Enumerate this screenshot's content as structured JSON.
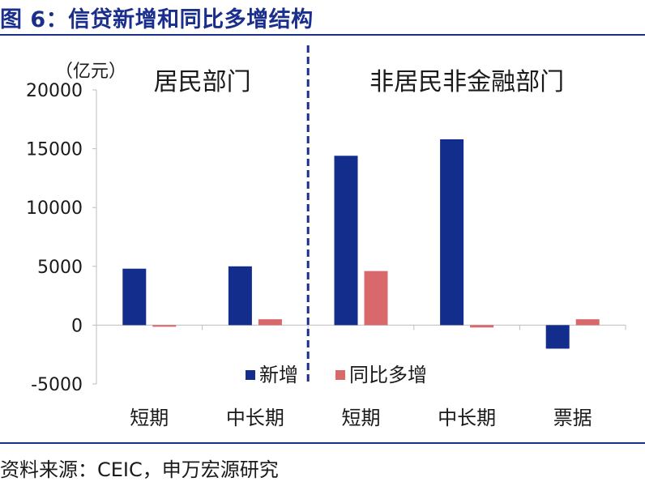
{
  "title": "图 6：信贷新增和同比多增结构",
  "source": "资料来源：CEIC，申万宏源研究",
  "colors": {
    "accent": "#1a2e8c",
    "new_increase": "#132d8c",
    "yoy_increase": "#d9686a",
    "axis": "#bdbdbd",
    "divider": "#1a2e8c"
  },
  "chart_data": {
    "type": "bar",
    "unit_label": "（亿元）",
    "groups": [
      {
        "label": "居民部门",
        "categories": [
          "短期",
          "中长期"
        ]
      },
      {
        "label": "非居民非金融部门",
        "categories": [
          "短期",
          "中长期",
          "票据"
        ]
      }
    ],
    "categories": [
      "短期",
      "中长期",
      "短期",
      "中长期",
      "票据"
    ],
    "series": [
      {
        "name": "新增",
        "color": "#132d8c",
        "values": [
          4800,
          5000,
          14400,
          15800,
          -2000
        ]
      },
      {
        "name": "同比多增",
        "color": "#d9686a",
        "values": [
          -100,
          500,
          4600,
          -200,
          500
        ]
      }
    ],
    "ylim": [
      -5000,
      20000
    ],
    "yticks": [
      "-5000",
      "0",
      "5000",
      "10000",
      "15000",
      "20000"
    ],
    "legend_position": "bottom-center",
    "grid": false
  }
}
